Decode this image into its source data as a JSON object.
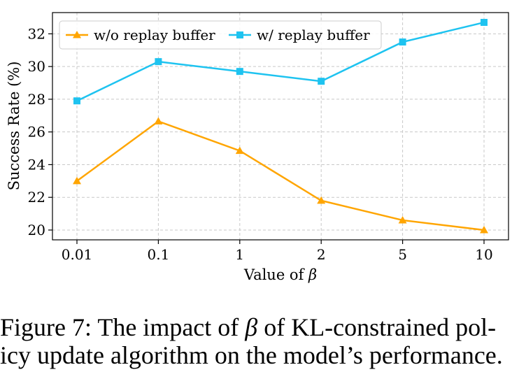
{
  "chart_data": {
    "type": "line",
    "categories": [
      "0.01",
      "0.1",
      "1",
      "2",
      "5",
      "10"
    ],
    "series": [
      {
        "name": "w/o replay buffer",
        "color": "#ffa500",
        "marker": "triangle",
        "values": [
          23.0,
          26.65,
          24.85,
          21.8,
          20.6,
          20.0
        ]
      },
      {
        "name": "w/ replay buffer",
        "color": "#1ec3f0",
        "marker": "square",
        "values": [
          27.9,
          30.3,
          29.7,
          29.1,
          31.5,
          32.7
        ]
      }
    ],
    "xlabel_prefix": "Value of ",
    "xlabel_symbol": "β",
    "ylabel": "Success Rate (%)",
    "yticks": [
      20,
      22,
      24,
      26,
      28,
      30,
      32
    ],
    "ylim": [
      19.4,
      33.3
    ],
    "grid": true,
    "legend_position": "top-left"
  },
  "caption": {
    "line1_before": "Figure 7: The impact of ",
    "symbol": "β",
    "line1_after": " of KL-constrained pol-",
    "line2": "icy update algorithm on the model’s performance."
  }
}
